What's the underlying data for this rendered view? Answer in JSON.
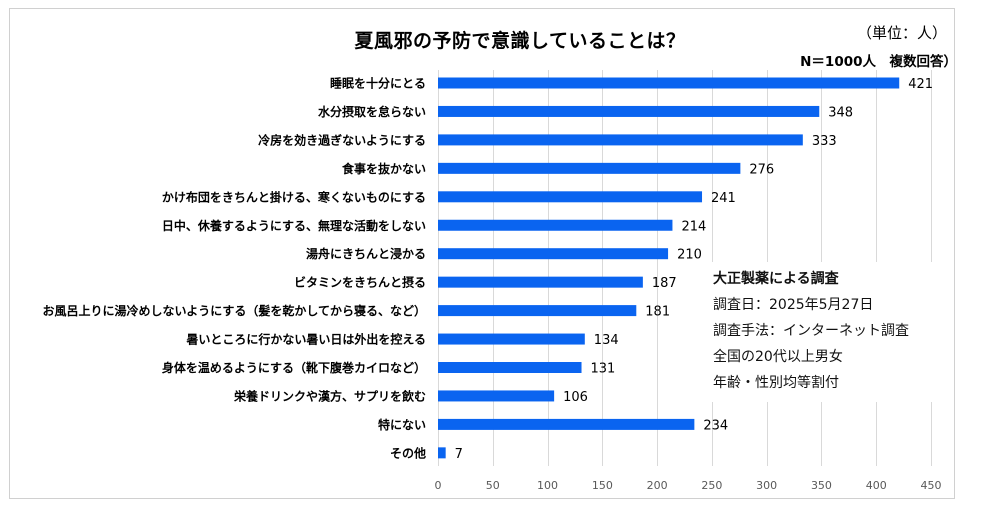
{
  "header": {
    "title": "夏風邪の予防で意識していることは？",
    "unit": "（単位：人）",
    "sample": "N＝1000人　複数回答）"
  },
  "note": {
    "heading": "大正製薬による調査",
    "lines": [
      "調査日：2025年5月27日",
      "調査手法：インターネット調査",
      "全国の20代以上男女",
      "年齢・性別均等割付"
    ]
  },
  "colors": {
    "bar": "#0A64F0",
    "grid": "#D9D9D9",
    "frame": "#D0D0D0"
  },
  "chart_data": {
    "type": "bar",
    "orientation": "horizontal",
    "title": "夏風邪の予防で意識していることは？",
    "xlabel": "",
    "ylabel": "",
    "xlim": [
      0,
      450
    ],
    "xticks": [
      0,
      50,
      100,
      150,
      200,
      250,
      300,
      350,
      400,
      450
    ],
    "grid": true,
    "categories": [
      "睡眠を十分にとる",
      "水分摂取を怠らない",
      "冷房を効き過ぎないようにする",
      "食事を抜かない",
      "かけ布団をきちんと掛ける、寒くないものにする",
      "日中、休養するようにする、無理な活動をしない",
      "湯舟にきちんと浸かる",
      "ビタミンをきちんと摂る",
      "お風呂上りに湯冷めしないようにする（髪を乾かしてから寝る、など）",
      "暑いところに行かない暑い日は外出を控える",
      "身体を温めるようにする（靴下腹巻カイロなど）",
      "栄養ドリンクや漢方、サプリを飲む",
      "特にない",
      "その他"
    ],
    "values": [
      421,
      348,
      333,
      276,
      241,
      214,
      210,
      187,
      181,
      134,
      131,
      106,
      234,
      7
    ]
  }
}
